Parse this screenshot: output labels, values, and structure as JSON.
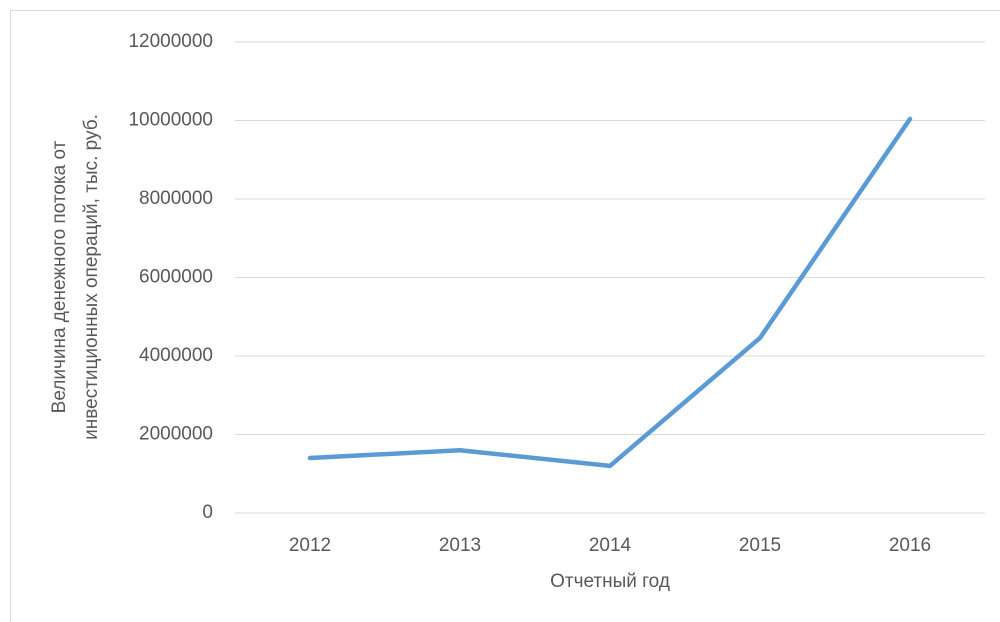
{
  "chart_data": {
    "type": "line",
    "x_label": "Отчетный год",
    "y_label": [
      "Величина денежного потока от",
      "инвестиционных операций, тыс. руб."
    ],
    "categories": [
      "2012",
      "2013",
      "2014",
      "2015",
      "2016"
    ],
    "values": [
      1400000,
      1600000,
      1200000,
      4460000,
      10040000
    ],
    "color": "#5b9bd5",
    "ylim": [
      0,
      12000000
    ],
    "yticks": [
      0,
      2000000,
      4000000,
      6000000,
      8000000,
      10000000,
      12000000
    ],
    "grid": true
  }
}
